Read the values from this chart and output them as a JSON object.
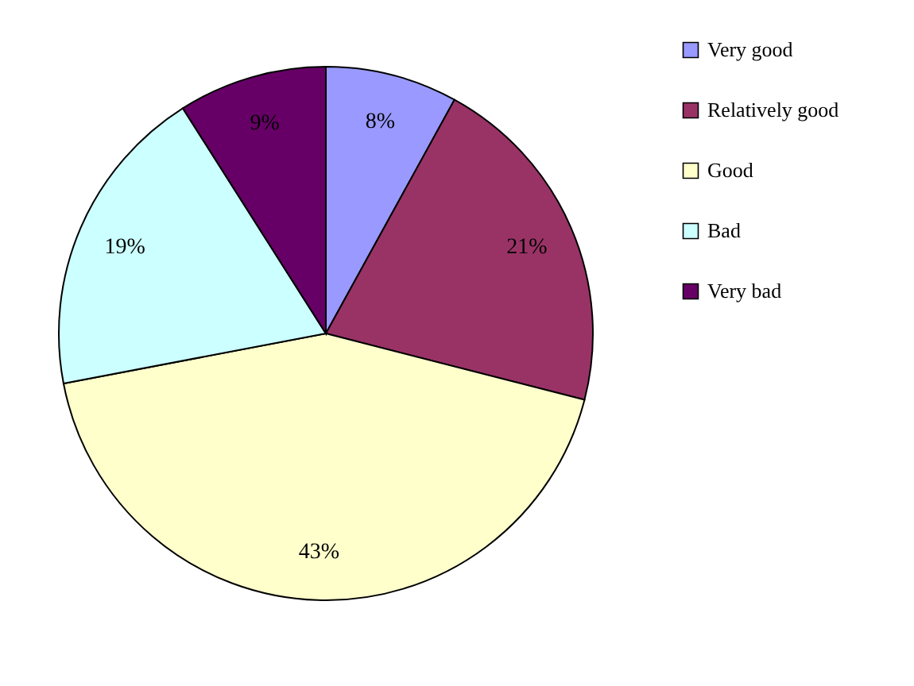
{
  "chart_data": {
    "type": "pie",
    "categories": [
      "Very good",
      "Relatively good",
      "Good",
      "Bad",
      "Very bad"
    ],
    "values": [
      8,
      21,
      43,
      19,
      9
    ],
    "colors": [
      "#9999ff",
      "#993366",
      "#ffffcc",
      "#ccffff",
      "#660066"
    ],
    "value_labels": [
      "8%",
      "21%",
      "43%",
      "19%",
      "9%"
    ],
    "legend": "right"
  }
}
